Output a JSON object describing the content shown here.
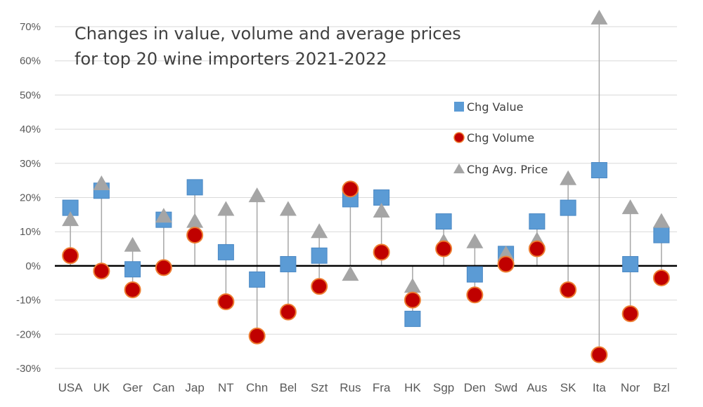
{
  "chart_data": {
    "type": "scatter",
    "title_lines": [
      "Changes in value, volume and average prices",
      "for top 20 wine importers 2021-2022"
    ],
    "categories": [
      "USA",
      "UK",
      "Ger",
      "Can",
      "Jap",
      "NT",
      "Chn",
      "Bel",
      "Szt",
      "Rus",
      "Fra",
      "HK",
      "Sgp",
      "Den",
      "Swd",
      "Aus",
      "SK",
      "Ita",
      "Nor",
      "Bzl"
    ],
    "y_ticks": [
      "70%",
      "60%",
      "50%",
      "40%",
      "30%",
      "20%",
      "10%",
      "0%",
      "-10%",
      "-20%",
      "-30%"
    ],
    "ylim": [
      -30,
      70
    ],
    "y_unit": "%",
    "grid": true,
    "legend_position": "right, middle",
    "series": [
      {
        "name": "Chg Value",
        "marker": "square",
        "color": "#5B9BD5",
        "values": [
          17,
          22,
          -1,
          13.5,
          23,
          4,
          -4,
          0.5,
          3,
          19.5,
          20,
          -15.5,
          13,
          -2.5,
          3.5,
          13,
          17,
          28,
          0.5,
          9
        ]
      },
      {
        "name": "Chg Volume",
        "marker": "circle",
        "color": "#C00000",
        "values": [
          3,
          -1.5,
          -7,
          -0.5,
          9,
          -10.5,
          -20.5,
          -13.5,
          -6,
          22.5,
          4,
          -10,
          5,
          -8.5,
          0.5,
          5,
          -7,
          -26,
          -14,
          -3.5
        ]
      },
      {
        "name": "Chg Avg. Price",
        "marker": "triangle",
        "color": "#A5A5A5",
        "values": [
          13.5,
          24,
          6,
          14.5,
          13,
          16.5,
          20.5,
          16.5,
          10,
          -2.5,
          16,
          -6,
          7,
          7,
          3.5,
          7.5,
          25.5,
          72.5,
          17,
          13
        ]
      }
    ]
  }
}
